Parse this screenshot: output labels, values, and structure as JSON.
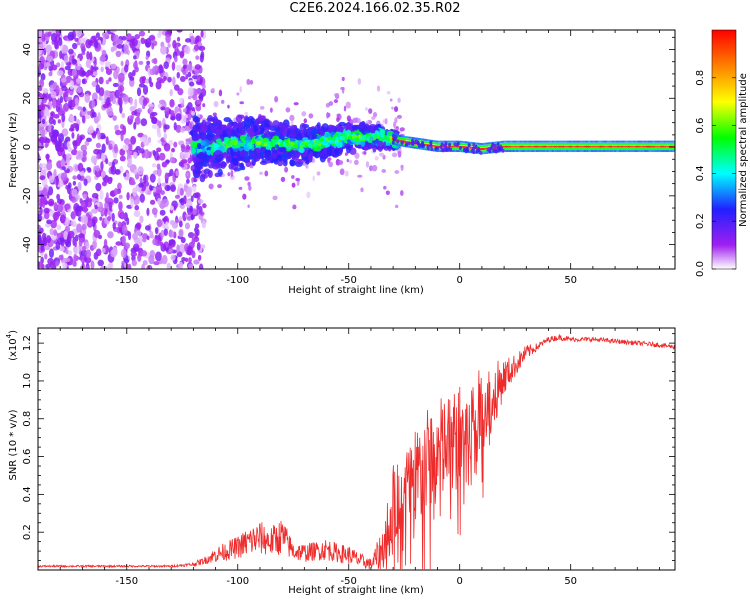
{
  "title": "C2E6.2024.166.02.35.R02",
  "chart_data": [
    {
      "type": "heatmap",
      "xlabel": "Height of straight line (km)",
      "ylabel": "Frequency (Hz)",
      "xlim": [
        -190,
        97
      ],
      "ylim": [
        -50,
        48
      ],
      "x_ticks": [
        -150,
        -100,
        -50,
        0,
        50
      ],
      "y_ticks": [
        -40,
        -20,
        0,
        20,
        40
      ],
      "colorbar": {
        "label": "Normalized spectral amplitude",
        "range": [
          0,
          1
        ],
        "ticks": [
          "0.0",
          "0.2",
          "0.4",
          "0.6",
          "0.8"
        ],
        "colormap": [
          "#ffffff",
          "#a020f0",
          "#2020ff",
          "#00ffff",
          "#00ff00",
          "#ffff00",
          "#ff8000",
          "#ff0000"
        ]
      },
      "regions": [
        {
          "name": "noise",
          "x": [
            -190,
            -120
          ],
          "f": [
            -50,
            48
          ],
          "amplitude": 0.08
        },
        {
          "name": "transition",
          "x": [
            -120,
            -30
          ],
          "f": [
            -20,
            15
          ],
          "amplitude": 0.25
        },
        {
          "name": "signal",
          "x": [
            -30,
            97
          ],
          "f": [
            -2,
            3
          ],
          "amplitude": 0.9
        }
      ],
      "ridge": [
        {
          "x": -115,
          "f": 0
        },
        {
          "x": -90,
          "f": 2
        },
        {
          "x": -70,
          "f": 1
        },
        {
          "x": -50,
          "f": 4
        },
        {
          "x": -35,
          "f": 4
        },
        {
          "x": -25,
          "f": 2
        },
        {
          "x": -10,
          "f": 0
        },
        {
          "x": 0,
          "f": 0
        },
        {
          "x": 10,
          "f": -1
        },
        {
          "x": 20,
          "f": 0
        },
        {
          "x": 97,
          "f": 0
        }
      ]
    },
    {
      "type": "line",
      "xlabel": "Height of straight line (km)",
      "ylabel": "SNR (10 * v/v)",
      "y_multiplier": "(x10",
      "y_multiplier_exp": "4",
      "xlim": [
        -190,
        97
      ],
      "ylim": [
        0,
        1.28
      ],
      "x_ticks": [
        -150,
        -100,
        -50,
        0,
        50
      ],
      "y_ticks": [
        "0.2",
        "0.4",
        "0.6",
        "0.8",
        "1.0",
        "1.2"
      ],
      "line_color": "#ee2a2a",
      "series": [
        {
          "x": [
            -190,
            -170,
            -150,
            -130,
            -120,
            -115,
            -110,
            -100,
            -95,
            -90,
            -85,
            -80,
            -75,
            -70,
            -65,
            -60,
            -55,
            -50,
            -45,
            -40,
            -35,
            -30,
            -25,
            -20,
            -15,
            -10,
            -5,
            0,
            5,
            10,
            15,
            20,
            25,
            30,
            35,
            40,
            45,
            50,
            60,
            70,
            80,
            90,
            97
          ],
          "y": [
            0.02,
            0.02,
            0.02,
            0.02,
            0.03,
            0.05,
            0.08,
            0.12,
            0.15,
            0.17,
            0.15,
            0.18,
            0.1,
            0.09,
            0.1,
            0.11,
            0.09,
            0.08,
            0.05,
            0.03,
            0.1,
            0.35,
            0.42,
            0.48,
            0.55,
            0.62,
            0.65,
            0.7,
            0.78,
            0.85,
            0.92,
            1.02,
            1.08,
            1.15,
            1.18,
            1.22,
            1.23,
            1.22,
            1.22,
            1.21,
            1.2,
            1.19,
            1.18
          ],
          "noise": [
            0.005,
            0.005,
            0.005,
            0.005,
            0.01,
            0.02,
            0.04,
            0.06,
            0.08,
            0.09,
            0.08,
            0.1,
            0.05,
            0.05,
            0.05,
            0.06,
            0.05,
            0.05,
            0.04,
            0.03,
            0.12,
            0.22,
            0.25,
            0.28,
            0.3,
            0.3,
            0.28,
            0.28,
            0.25,
            0.22,
            0.18,
            0.1,
            0.06,
            0.04,
            0.02,
            0.015,
            0.015,
            0.012,
            0.012,
            0.012,
            0.012,
            0.012,
            0.012
          ]
        }
      ]
    }
  ]
}
